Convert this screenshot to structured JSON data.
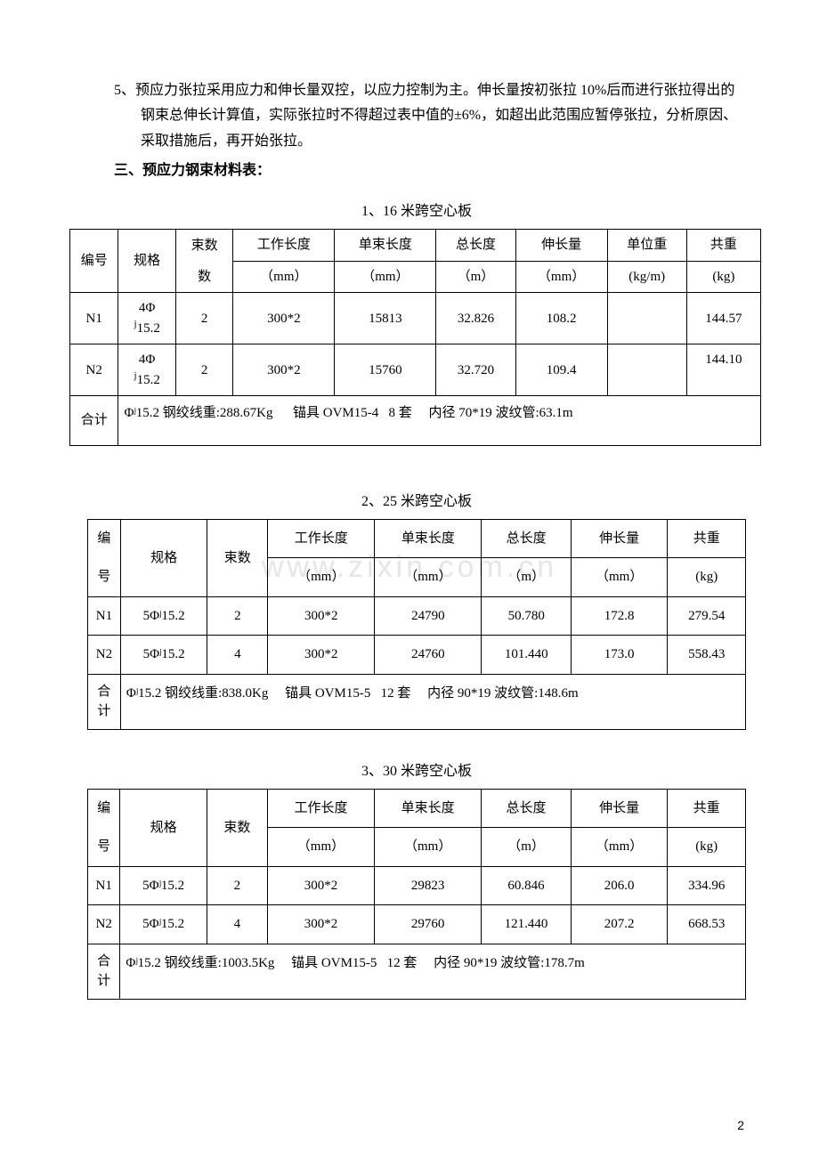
{
  "paragraph5": "5、预应力张拉采用应力和伸长量双控，以应力控制为主。伸长量按初张拉 10%后而进行张拉得出的钢束总伸长计算值，实际张拉时不得超过表中值的±6%，如超出此范围应暂停张拉，分析原因、采取措施后，再开始张拉。",
  "heading3": "三、预应力钢束材料表：",
  "watermark": "www.zixin.com.cn",
  "pageNum": "2",
  "tables": {
    "t1": {
      "title": "1、16 米跨空心板",
      "headers": {
        "c1a": "编号",
        "c2a": "规格",
        "c3a": "束数",
        "c4a": "工作长度",
        "c4b": "（mm）",
        "c5a": "单束长度",
        "c5b": "（mm）",
        "c6a": "总长度",
        "c6b": "（m）",
        "c7a": "伸长量",
        "c7b": "（mm）",
        "c8a": "单位重",
        "c8b": "(kg/m)",
        "c9a": "共重",
        "c9b": "(kg)"
      },
      "rows": [
        {
          "id": "N1",
          "spec_a": "4Φ",
          "spec_b": "15.2",
          "bundles": "2",
          "work": "300*2",
          "single": "15813",
          "total": "32.826",
          "elong": "108.2",
          "unitw": "",
          "weight": "144.57"
        },
        {
          "id": "N2",
          "spec_a": "4Φ",
          "spec_b": "15.2",
          "bundles": "2",
          "work": "300*2",
          "single": "15760",
          "total": "32.720",
          "elong": "109.4",
          "unitw": "",
          "weight": "144.10"
        }
      ],
      "sumLabel": "合计",
      "summary": "Φʲ15.2 钢绞线重:288.67Kg      锚具 OVM15-4   8 套     内径 70*19 波纹管:63.1m"
    },
    "t2": {
      "title": "2、25 米跨空心板",
      "headers": {
        "c1a": "编号",
        "c2a": "规格",
        "c3a": "束数",
        "c4a": "工作长度",
        "c4b": "（mm）",
        "c5a": "单束长度",
        "c5b": "（mm）",
        "c6a": "总长度",
        "c6b": "（m）",
        "c7a": "伸长量",
        "c7b": "（mm）",
        "c8a": "共重",
        "c8b": "(kg)"
      },
      "rows": [
        {
          "id": "N1",
          "spec": "5Φʲ15.2",
          "bundles": "2",
          "work": "300*2",
          "single": "24790",
          "total": "50.780",
          "elong": "172.8",
          "weight": "279.54"
        },
        {
          "id": "N2",
          "spec": "5Φʲ15.2",
          "bundles": "4",
          "work": "300*2",
          "single": "24760",
          "total": "101.440",
          "elong": "173.0",
          "weight": "558.43"
        }
      ],
      "sumLabel": "合计",
      "summary": "Φʲ15.2 钢绞线重:838.0Kg     锚具 OVM15-5   12 套     内径 90*19 波纹管:148.6m"
    },
    "t3": {
      "title": "3、30 米跨空心板",
      "headers": {
        "c1a": "编号",
        "c2a": "规格",
        "c3a": "束数",
        "c4a": "工作长度",
        "c4b": "（mm）",
        "c5a": "单束长度",
        "c5b": "（mm）",
        "c6a": "总长度",
        "c6b": "（m）",
        "c7a": "伸长量",
        "c7b": "（mm）",
        "c8a": "共重",
        "c8b": "(kg)"
      },
      "rows": [
        {
          "id": "N1",
          "spec": "5Φʲ15.2",
          "bundles": "2",
          "work": "300*2",
          "single": "29823",
          "total": "60.846",
          "elong": "206.0",
          "weight": "334.96"
        },
        {
          "id": "N2",
          "spec": "5Φʲ15.2",
          "bundles": "4",
          "work": "300*2",
          "single": "29760",
          "total": "121.440",
          "elong": "207.2",
          "weight": "668.53"
        }
      ],
      "sumLabel": "合计",
      "summary": "Φʲ15.2 钢绞线重:1003.5Kg     锚具 OVM15-5   12 套     内径 90*19 波纹管:178.7m"
    }
  }
}
